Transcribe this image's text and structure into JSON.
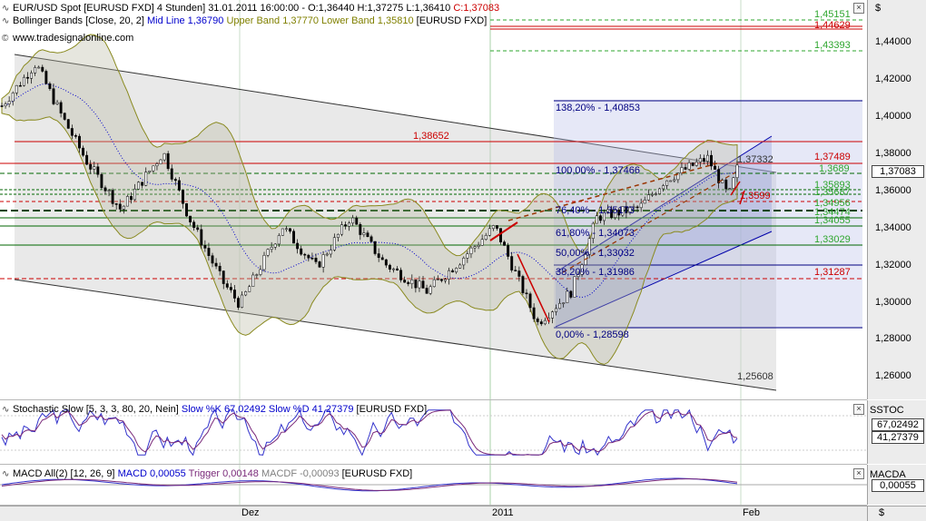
{
  "header": {
    "main_prefix": "EUR/USD Spot [EURUSD FXD]  4 Stunden] 31.01.2011 16:00:00 - O:1,36440 H:1,37275 L:1,36410",
    "main_close": "C:1,37083",
    "bb_name": "Bollinger Bands [Close, 20, 2]",
    "bb_mid": "Mid Line 1,36790",
    "bb_upper": "Upper Band 1,37770",
    "bb_lower": "Lower Band 1,35810",
    "bb_suffix": "[EURUSD FXD]",
    "website": "www.tradesignalonline.com",
    "stoch_name": "Stochastic Slow [5, 3, 3, 80, 20, Nein]",
    "stoch_k": "Slow %K 67,02492",
    "stoch_d": "Slow %D 41,27379",
    "stoch_suffix": "[EURUSD FXD]",
    "macd_name": "MACD All(2) [12, 26, 9]",
    "macd_val": "MACD 0,00055",
    "macd_trigger": "Trigger 0,00148",
    "macd_macdf": "MACDF -0,00093",
    "macd_suffix": "[EURUSD FXD]"
  },
  "axis": {
    "currency": "$",
    "price_ticks": [
      "1,44000",
      "1,42000",
      "1,40000",
      "1,38000",
      "1,36000",
      "1,34000",
      "1,32000",
      "1,30000",
      "1,28000",
      "1,26000"
    ],
    "price_last": "1,37083",
    "stoch_title": "SSTOC",
    "stoch_k_box": "67,02492",
    "stoch_d_box": "41,27379",
    "macd_title": "MACDA",
    "macd_box": "0,00055",
    "dollar_small": "$"
  },
  "time_axis": [
    "Dez",
    "2011",
    "Feb"
  ],
  "levels": {
    "l45": "1,45151",
    "l44": "1,44629",
    "l43": "1,43393",
    "l38652": "1,38652",
    "l37489": "1,37489",
    "l37332": "1,37332",
    "l3689": "1,3689",
    "l35893": "1,35893",
    "l35687": "1,35687",
    "l3599": "1,3599",
    "l34956": "1,34956",
    "l34474": "1,34474",
    "l34055": "1,34055",
    "l33029": "1,33029",
    "l31287": "1,31287",
    "l25608": "1,25608"
  },
  "fib": {
    "f138": "138,20% - 1,40853",
    "f100": "100,00% - 1,37466",
    "f764": "76,40% - 1,35173",
    "f618": "61,80% - 1,34073",
    "f50": "50,00% - 1,33032",
    "f382": "38,20% - 1,31986",
    "f0": "0,00% - 1,28598"
  },
  "chart_data": {
    "type": "candlestick",
    "instrument": "EUR/USD Spot [EURUSD FXD]",
    "timeframe": "4 Stunden",
    "last_bar": {
      "time": "31.01.2011 16:00:00",
      "open": 1.3644,
      "high": 1.37275,
      "low": 1.3641,
      "close": 1.37083
    },
    "ylim": [
      1.25,
      1.46
    ],
    "path_points": [
      {
        "t": 0,
        "p": 1.405
      },
      {
        "t": 0.04,
        "p": 1.428
      },
      {
        "t": 0.07,
        "p": 1.4
      },
      {
        "t": 0.1,
        "p": 1.375
      },
      {
        "t": 0.14,
        "p": 1.349
      },
      {
        "t": 0.19,
        "p": 1.38
      },
      {
        "t": 0.22,
        "p": 1.345
      },
      {
        "t": 0.26,
        "p": 1.31
      },
      {
        "t": 0.28,
        "p": 1.298
      },
      {
        "t": 0.33,
        "p": 1.34
      },
      {
        "t": 0.37,
        "p": 1.318
      },
      {
        "t": 0.41,
        "p": 1.345
      },
      {
        "t": 0.45,
        "p": 1.32
      },
      {
        "t": 0.5,
        "p": 1.305
      },
      {
        "t": 0.54,
        "p": 1.322
      },
      {
        "t": 0.58,
        "p": 1.34
      },
      {
        "t": 0.63,
        "p": 1.288
      },
      {
        "t": 0.67,
        "p": 1.305
      },
      {
        "t": 0.7,
        "p": 1.345
      },
      {
        "t": 0.75,
        "p": 1.35
      },
      {
        "t": 0.78,
        "p": 1.365
      },
      {
        "t": 0.83,
        "p": 1.377
      },
      {
        "t": 0.855,
        "p": 1.356
      },
      {
        "t": 0.865,
        "p": 1.371
      }
    ],
    "stochastic": {
      "k": 67.02492,
      "d": 41.27379,
      "ylim": [
        0,
        100
      ]
    },
    "macd": {
      "macd": 0.00055,
      "trigger": 0.00148,
      "macdf": -0.00093
    }
  }
}
